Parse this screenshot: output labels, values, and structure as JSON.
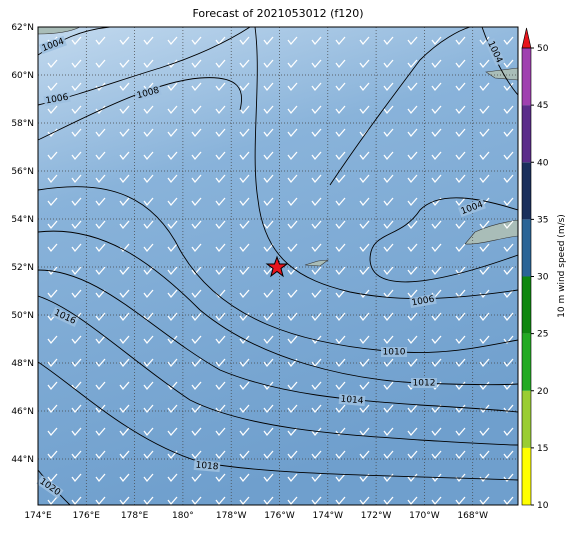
{
  "map": {
    "title": "Forecast of 2021053012 (f120)",
    "lat_labels": [
      "62°N",
      "60°N",
      "58°N",
      "56°N",
      "54°N",
      "52°N",
      "50°N",
      "48°N",
      "46°N",
      "44°N"
    ],
    "lon_labels": [
      "174°E",
      "176°E",
      "178°E",
      "180°",
      "178°W",
      "176°W",
      "174°W",
      "172°W",
      "170°W",
      "168°W"
    ],
    "contour_labels": [
      "1004",
      "1006",
      "1008",
      "1004",
      "1004",
      "1006",
      "1010",
      "1012",
      "1014",
      "1016",
      "1018",
      "1020"
    ],
    "colorbar": {
      "label": "10 m wind speed (m/s)",
      "range": [
        10,
        50
      ],
      "ticks": [
        10,
        15,
        20,
        25,
        30,
        35,
        40,
        45,
        50
      ]
    }
  }
}
